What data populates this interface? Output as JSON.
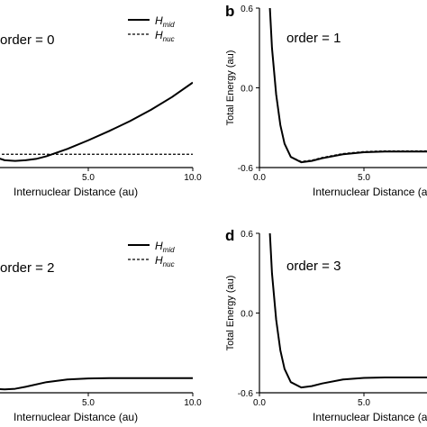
{
  "chart_data": [
    {
      "panel": "",
      "type": "line",
      "annotation": "order = 0",
      "xlabel": "Internuclear Distance (au)",
      "ylabel": "",
      "xlim": [
        0,
        10
      ],
      "ylim": [
        -0.6,
        0.6
      ],
      "x_ticks": [
        "5.0",
        "10.0"
      ],
      "y_ticks": [],
      "legend": "top-right",
      "series": [
        {
          "name": "mid",
          "label_base": "H",
          "style": "solid",
          "x": [
            0,
            0.5,
            1.0,
            1.5,
            2.0,
            2.5,
            3.0,
            4.0,
            5.0,
            6.0,
            7.0,
            8.0,
            9.0,
            10.0
          ],
          "y": [
            -0.47,
            -0.52,
            -0.545,
            -0.55,
            -0.545,
            -0.535,
            -0.515,
            -0.46,
            -0.395,
            -0.325,
            -0.25,
            -0.165,
            -0.07,
            0.04
          ]
        },
        {
          "name": "nuc",
          "label_base": "H",
          "style": "dashed",
          "x": [
            0,
            1.0,
            2.0,
            3.0,
            5.0,
            10.0
          ],
          "y": [
            -0.5,
            -0.5,
            -0.5,
            -0.5,
            -0.5,
            -0.5
          ]
        }
      ]
    },
    {
      "panel": "b",
      "type": "line",
      "annotation": "order = 1",
      "xlabel": "Internuclear Distance (au)",
      "ylabel": "Total Energy (au)",
      "xlim": [
        0,
        10
      ],
      "ylim": [
        -0.6,
        0.6
      ],
      "x_ticks": [
        "0.0",
        "5.0"
      ],
      "y_ticks": [
        "0.6",
        "0.0",
        "-0.6"
      ],
      "series": [
        {
          "name": "mid",
          "style": "solid",
          "x": [
            0.5,
            0.6,
            0.8,
            1.0,
            1.2,
            1.5,
            2.0,
            2.5,
            3.0,
            4.0,
            5.0,
            6.0,
            7.0,
            8.0,
            9.0,
            10.0
          ],
          "y": [
            0.6,
            0.3,
            -0.05,
            -0.28,
            -0.42,
            -0.52,
            -0.56,
            -0.55,
            -0.53,
            -0.5,
            -0.485,
            -0.48,
            -0.48,
            -0.48,
            -0.48,
            -0.48
          ]
        },
        {
          "name": "nuc",
          "style": "dashed",
          "x": [
            1.5,
            2.0,
            2.5,
            3.0,
            4.0,
            5.0,
            6.0,
            7.0,
            8.0,
            9.0,
            10.0
          ],
          "y": [
            -0.52,
            -0.555,
            -0.545,
            -0.525,
            -0.495,
            -0.48,
            -0.475,
            -0.475,
            -0.475,
            -0.475,
            -0.475
          ]
        }
      ]
    },
    {
      "panel": "",
      "type": "line",
      "annotation": "order = 2",
      "xlabel": "Internuclear Distance (au)",
      "ylabel": "",
      "xlim": [
        0,
        10
      ],
      "ylim": [
        -0.6,
        0.6
      ],
      "x_ticks": [
        "5.0",
        "10.0"
      ],
      "y_ticks": [],
      "legend": "top-right",
      "series": [
        {
          "name": "mid",
          "label_base": "H",
          "style": "solid",
          "x": [
            0,
            0.5,
            1.0,
            1.5,
            2.0,
            3.0,
            4.0,
            5.0,
            6.0,
            7.0,
            8.0,
            9.0,
            10.0
          ],
          "y": [
            -0.56,
            -0.57,
            -0.575,
            -0.57,
            -0.555,
            -0.52,
            -0.5,
            -0.492,
            -0.49,
            -0.49,
            -0.49,
            -0.49,
            -0.49
          ]
        },
        {
          "name": "nuc",
          "label_base": "H",
          "style": "dashed",
          "x": [],
          "y": []
        }
      ]
    },
    {
      "panel": "d",
      "type": "line",
      "annotation": "order = 3",
      "xlabel": "Internuclear Distance (a",
      "ylabel": "Total Energy (au)",
      "xlim": [
        0,
        10
      ],
      "ylim": [
        -0.6,
        0.6
      ],
      "x_ticks": [
        "0.0",
        "5.0"
      ],
      "y_ticks": [
        "0.6",
        "0.0",
        "-0.6"
      ],
      "series": [
        {
          "name": "mid",
          "style": "solid",
          "x": [
            0.5,
            0.6,
            0.8,
            1.0,
            1.2,
            1.5,
            2.0,
            2.5,
            3.0,
            4.0,
            5.0,
            6.0,
            7.0,
            8.0,
            9.0,
            10.0
          ],
          "y": [
            0.6,
            0.3,
            -0.05,
            -0.28,
            -0.42,
            -0.52,
            -0.56,
            -0.55,
            -0.53,
            -0.5,
            -0.488,
            -0.485,
            -0.485,
            -0.485,
            -0.485,
            -0.485
          ]
        }
      ]
    }
  ]
}
